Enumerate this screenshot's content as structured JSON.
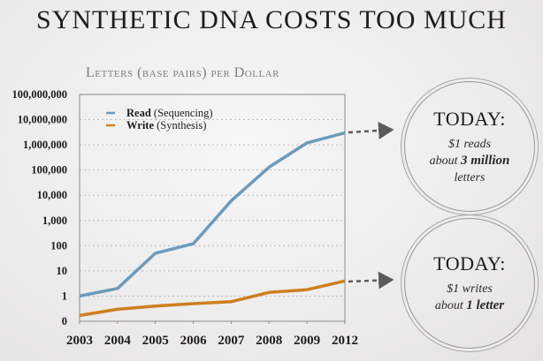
{
  "header": {
    "title": "SYNTHETIC DNA COSTS TOO MUCH",
    "subtitle": "Letters (base pairs) per Dollar"
  },
  "callouts": [
    {
      "heading": "TODAY:",
      "line1": "$1 reads",
      "line2_prefix": "about ",
      "line2_bold": "3 million",
      "line3": "letters"
    },
    {
      "heading": "TODAY:",
      "line1": "$1 writes",
      "line2_prefix": "about ",
      "line2_bold": "1 letter",
      "line3": ""
    }
  ],
  "colors": {
    "read": "#6c9bbb",
    "write": "#cf7f1f",
    "arrow": "#5c5a5a",
    "grid": "#bdbaba",
    "axis": "#8c8989"
  },
  "chart_data": {
    "type": "line",
    "title": "Letters (base pairs) per Dollar",
    "xlabel": "",
    "ylabel": "",
    "yscale": "log",
    "categories": [
      "2003",
      "2004",
      "2005",
      "2006",
      "2007",
      "2008",
      "2009",
      "2012"
    ],
    "y_tick_labels": [
      "0",
      "1",
      "10",
      "100",
      "1,000",
      "10,000",
      "100,000",
      "1,000,000",
      "10,000,000",
      "100,000,000"
    ],
    "ylim": [
      0.1,
      100000000
    ],
    "grid": "horizontal dotted",
    "legend_position": "upper left",
    "series": [
      {
        "name": "Read (Sequencing)",
        "values": [
          1,
          2,
          50,
          120,
          6000,
          130000,
          1200000,
          3000000
        ]
      },
      {
        "name": "Write (Synthesis)",
        "values": [
          0.17,
          0.3,
          0.4,
          0.5,
          0.6,
          1.4,
          1.8,
          4
        ]
      }
    ]
  }
}
